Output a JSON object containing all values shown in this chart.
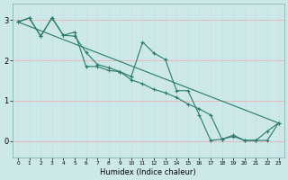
{
  "xlabel": "Humidex (Indice chaleur)",
  "xlim": [
    -0.5,
    23.5
  ],
  "ylim": [
    -0.4,
    3.4
  ],
  "xticks": [
    0,
    1,
    2,
    3,
    4,
    5,
    6,
    7,
    8,
    9,
    10,
    11,
    12,
    13,
    14,
    15,
    16,
    17,
    18,
    19,
    20,
    21,
    22,
    23
  ],
  "yticks": [
    0,
    1,
    2,
    3
  ],
  "bg_color": "#cce8e8",
  "line_color": "#2a7a6a",
  "grid_color_h": "#e8b0b0",
  "grid_color_v": "#c8dede",
  "line1_x": [
    0,
    1,
    2,
    3,
    4,
    5,
    6,
    7,
    8,
    9,
    10,
    11,
    12,
    13,
    14,
    15,
    16,
    17,
    18,
    19,
    20,
    21,
    22,
    23
  ],
  "line1_y": [
    2.95,
    3.05,
    2.6,
    3.05,
    2.62,
    2.7,
    1.85,
    1.85,
    1.75,
    1.72,
    1.6,
    2.45,
    2.18,
    2.02,
    1.25,
    1.25,
    0.65,
    0.02,
    0.05,
    0.15,
    0.02,
    0.02,
    0.25,
    0.45
  ],
  "line2_x": [
    0,
    1,
    2,
    3,
    4,
    5,
    6,
    7,
    8,
    9,
    10,
    11,
    12,
    13,
    14,
    15,
    16,
    17,
    18,
    19,
    20,
    21,
    22,
    23
  ],
  "line2_y": [
    2.95,
    3.05,
    2.6,
    3.05,
    2.62,
    2.6,
    2.2,
    1.9,
    1.82,
    1.72,
    1.52,
    1.42,
    1.28,
    1.2,
    1.08,
    0.92,
    0.8,
    0.65,
    0.05,
    0.12,
    0.02,
    0.02,
    0.02,
    0.45
  ],
  "line3_x": [
    0,
    23
  ],
  "line3_y": [
    2.95,
    0.45
  ]
}
